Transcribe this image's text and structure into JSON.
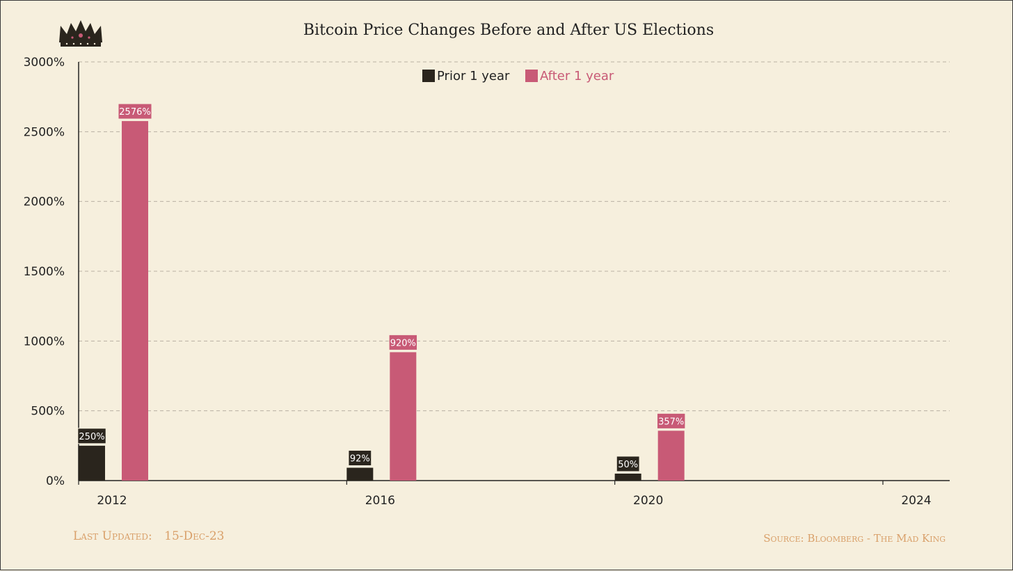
{
  "chart_data": {
    "type": "bar",
    "title": "Bitcoin Price Changes Before and After US Elections",
    "categories": [
      "2012",
      "2016",
      "2020",
      "2024"
    ],
    "series": [
      {
        "name": "Prior 1 year",
        "values": [
          250,
          92,
          50,
          null
        ],
        "labels": [
          "250%",
          "92%",
          "50%",
          ""
        ],
        "color": "#2a251d"
      },
      {
        "name": "After 1 year",
        "values": [
          2576,
          920,
          357,
          null
        ],
        "labels": [
          "2576%",
          "920%",
          "357%",
          ""
        ],
        "color": "#c85a76"
      }
    ],
    "ylim": [
      0,
      3000
    ],
    "yticks": [
      0,
      500,
      1000,
      1500,
      2000,
      2500,
      3000
    ],
    "ytick_labels": [
      "0%",
      "500%",
      "1000%",
      "1500%",
      "2000%",
      "2500%",
      "3000%"
    ],
    "grid": "horizontal-dashed",
    "legend": "top-center"
  },
  "footer": {
    "updated_label": "Last Updated:",
    "updated_date": "15-Dec-23",
    "source": "Source: Bloomberg - The Mad King"
  },
  "colors": {
    "background": "#f6efdd",
    "prior": "#2a251d",
    "after": "#c85a76",
    "footer_text": "#d9a06a"
  },
  "logo": "crown-icon"
}
